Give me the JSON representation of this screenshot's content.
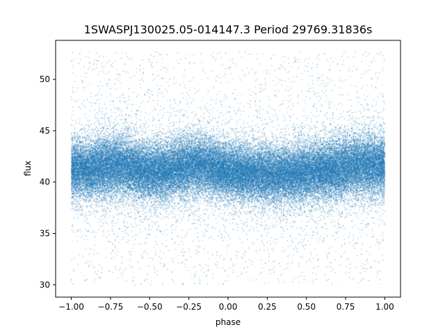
{
  "chart_data": {
    "type": "scatter",
    "title": "1SWASPJ130025.05-014147.3 Period 29769.31836s",
    "xlabel": "phase",
    "ylabel": "flux",
    "xlim": [
      -1.1,
      1.1
    ],
    "ylim": [
      28.8,
      53.8
    ],
    "xticks": [
      -1.0,
      -0.75,
      -0.5,
      -0.25,
      0.0,
      0.25,
      0.5,
      0.75,
      1.0
    ],
    "xtick_labels": [
      "−1.00",
      "−0.75",
      "−0.50",
      "−0.25",
      "0.00",
      "0.25",
      "0.50",
      "0.75",
      "1.00"
    ],
    "yticks": [
      30,
      35,
      40,
      45,
      50
    ],
    "ytick_labels": [
      "30",
      "35",
      "40",
      "45",
      "50"
    ],
    "grid": false,
    "legend": "none",
    "marker_color": "#1f77b4",
    "series": [
      {
        "phase_range": [
          -1.0,
          1.0
        ],
        "flux_range": [
          30.0,
          52.7
        ],
        "approx_points": 60000,
        "core_band": [
          38.0,
          45.0
        ],
        "profile": {
          "phase": [
            -1.0,
            -0.9,
            -0.8,
            -0.7,
            -0.6,
            -0.5,
            -0.4,
            -0.3,
            -0.2,
            -0.1,
            0.0,
            0.1,
            0.2,
            0.3,
            0.4,
            0.5,
            0.6,
            0.7,
            0.8,
            0.9,
            1.0
          ],
          "median_flux": [
            41.3,
            41.2,
            41.5,
            41.6,
            41.4,
            41.0,
            41.0,
            41.4,
            41.7,
            41.4,
            41.0,
            40.9,
            40.8,
            40.7,
            40.8,
            40.9,
            41.1,
            41.3,
            41.6,
            41.7,
            41.5
          ],
          "spread_sd": [
            1.3,
            1.3,
            1.4,
            1.4,
            1.3,
            1.3,
            1.3,
            1.4,
            1.4,
            1.3,
            1.3,
            1.3,
            1.3,
            1.3,
            1.3,
            1.3,
            1.3,
            1.4,
            1.4,
            1.4,
            1.3
          ]
        }
      }
    ]
  }
}
